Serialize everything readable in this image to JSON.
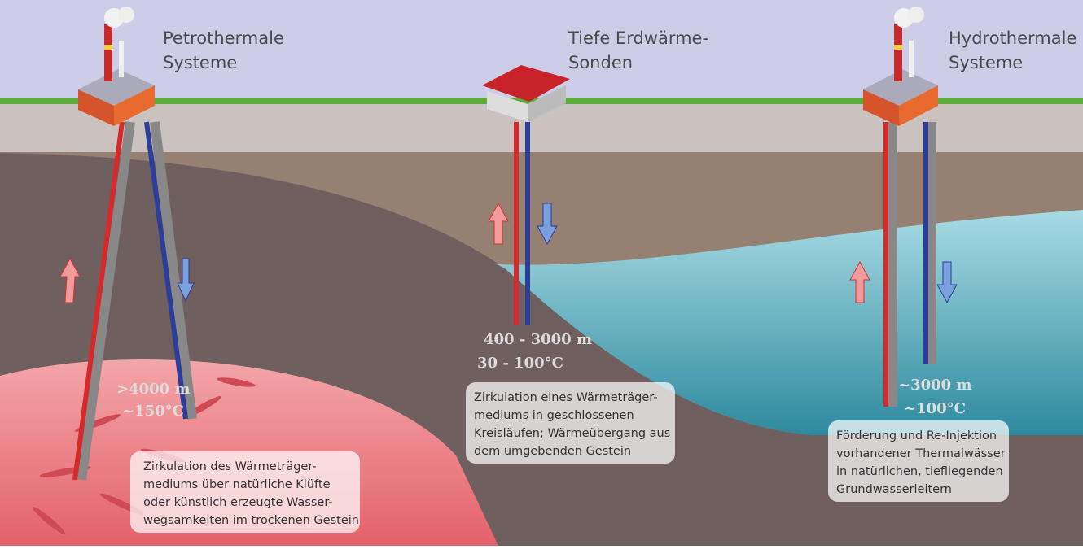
{
  "systems": [
    {
      "title": [
        "Petrothermale",
        "Systeme"
      ],
      "depth": ">4000 m",
      "temperature": "~150°C",
      "description": [
        "Zirkulation des Wärmeträger-",
        "mediums über natürliche Klüfte",
        "oder künstlich erzeugte Wasser-",
        "wegsamkeiten im trockenen Gestein"
      ]
    },
    {
      "title": [
        "Tiefe Erdwärme-",
        "Sonden"
      ],
      "depth": "400 - 3000 m",
      "temperature": "30 - 100°C",
      "description": [
        "Zirkulation eines Wärmeträger-",
        "mediums in geschlossenen",
        "Kreisläufen; Wärmeübergang aus",
        "dem umgebenden Gestein"
      ]
    },
    {
      "title": [
        "Hydrothermale",
        "Systeme"
      ],
      "depth": "~3000 m",
      "temperature": "~100°C",
      "description": [
        "Förderung und Re-Injektion",
        "vorhandener Thermalwässer",
        "in natürlichen, tiefliegenden",
        "Grundwasserleitern"
      ]
    }
  ]
}
